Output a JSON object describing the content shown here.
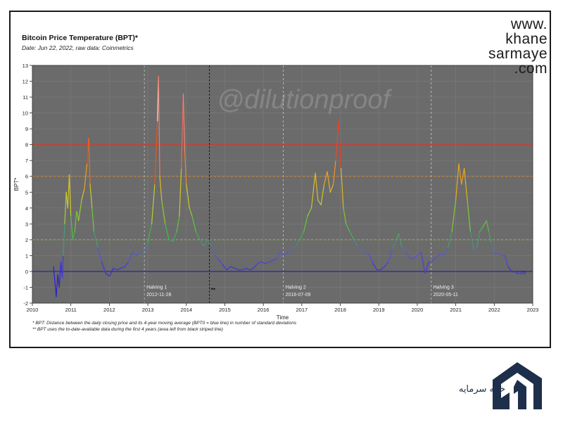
{
  "header": {
    "title": "Bitcoin Price Temperature (BPT)*",
    "subtitle": "Date: Jun 22, 2022, raw data: Coinmetrics"
  },
  "brand": {
    "lines": [
      "www.",
      "khane",
      "sarmaye",
      ".com"
    ],
    "logo_text_fa": "خانه سرمایه"
  },
  "footnotes": {
    "note1": "* BPT: Distance between the daily closing price and its 4-year moving average (BPT0 = blue line) in number of standard deviations",
    "note2": "** BPT uses the to-date-available data during the first 4 years (area left from black striped line)"
  },
  "chart_data": {
    "type": "line",
    "title": "Bitcoin Price Temperature (BPT)*",
    "subtitle": "Date: Jun 22, 2022, raw data: Coinmetrics",
    "xlabel": "Time",
    "ylabel": "BPT*",
    "watermark": "@dilutionproof",
    "xlim": [
      2010,
      2023
    ],
    "ylim": [
      -2,
      13
    ],
    "x_ticks": [
      2010,
      2011,
      2012,
      2013,
      2014,
      2015,
      2016,
      2017,
      2018,
      2019,
      2020,
      2021,
      2022,
      2023
    ],
    "y_ticks": [
      -2,
      -1,
      0,
      1,
      2,
      3,
      4,
      5,
      6,
      7,
      8,
      9,
      10,
      11,
      12,
      13
    ],
    "grid": true,
    "background": "#6b6b6b",
    "reference_lines": [
      {
        "y": 0,
        "color": "#1f1fb4",
        "style": "solid"
      },
      {
        "y": 2,
        "color": "#8fbf3a",
        "style": "dashed"
      },
      {
        "y": 6,
        "color": "#e08a1a",
        "style": "dashed"
      },
      {
        "y": 8,
        "color": "#d33a2a",
        "style": "solid"
      }
    ],
    "events": [
      {
        "label": "Halving 1",
        "date": "2012-11-28",
        "x": 2012.91
      },
      {
        "label": "Halving 2",
        "date": "2016-07-09",
        "x": 2016.52
      },
      {
        "label": "Halving 3",
        "date": "2020-05-11",
        "x": 2020.36
      }
    ],
    "cutoff": {
      "x": 2014.6,
      "label": "**"
    },
    "last_value_label": "-0.05",
    "series": [
      {
        "color_scale": [
          "#2a1fd0",
          "#5a4fe0",
          "#3cc43c",
          "#c8d42a",
          "#f0a020",
          "#e83a20",
          "#ffffff"
        ],
        "points": [
          [
            2010.55,
            0.3
          ],
          [
            2010.62,
            -1.6
          ],
          [
            2010.66,
            -0.2
          ],
          [
            2010.7,
            -1.0
          ],
          [
            2010.74,
            0.6
          ],
          [
            2010.78,
            -0.4
          ],
          [
            2010.8,
            1.0
          ],
          [
            2010.84,
            3.0
          ],
          [
            2010.88,
            5.0
          ],
          [
            2010.92,
            4.0
          ],
          [
            2010.96,
            6.1
          ],
          [
            2011.0,
            3.5
          ],
          [
            2011.05,
            2.0
          ],
          [
            2011.1,
            2.5
          ],
          [
            2011.15,
            3.8
          ],
          [
            2011.2,
            3.2
          ],
          [
            2011.28,
            4.5
          ],
          [
            2011.35,
            5.2
          ],
          [
            2011.42,
            6.8
          ],
          [
            2011.46,
            8.4
          ],
          [
            2011.5,
            5.5
          ],
          [
            2011.55,
            4.0
          ],
          [
            2011.6,
            2.5
          ],
          [
            2011.7,
            1.5
          ],
          [
            2011.8,
            0.6
          ],
          [
            2011.9,
            -0.1
          ],
          [
            2012.0,
            -0.3
          ],
          [
            2012.1,
            0.2
          ],
          [
            2012.2,
            0.1
          ],
          [
            2012.3,
            0.2
          ],
          [
            2012.4,
            0.3
          ],
          [
            2012.5,
            0.6
          ],
          [
            2012.6,
            1.2
          ],
          [
            2012.7,
            1.0
          ],
          [
            2012.8,
            1.2
          ],
          [
            2012.9,
            1.3
          ],
          [
            2013.0,
            1.8
          ],
          [
            2013.1,
            3.0
          ],
          [
            2013.18,
            5.5
          ],
          [
            2013.25,
            9.5
          ],
          [
            2013.28,
            12.3
          ],
          [
            2013.31,
            6.0
          ],
          [
            2013.36,
            4.5
          ],
          [
            2013.45,
            3.0
          ],
          [
            2013.55,
            2.0
          ],
          [
            2013.65,
            1.9
          ],
          [
            2013.75,
            2.5
          ],
          [
            2013.82,
            3.5
          ],
          [
            2013.87,
            6.5
          ],
          [
            2013.92,
            11.2
          ],
          [
            2013.96,
            7.5
          ],
          [
            2014.0,
            5.5
          ],
          [
            2014.08,
            4.0
          ],
          [
            2014.15,
            3.5
          ],
          [
            2014.25,
            2.5
          ],
          [
            2014.35,
            2.0
          ],
          [
            2014.45,
            1.6
          ],
          [
            2014.55,
            2.0
          ],
          [
            2014.65,
            1.6
          ],
          [
            2014.75,
            1.0
          ],
          [
            2014.85,
            0.7
          ],
          [
            2014.95,
            0.4
          ],
          [
            2015.05,
            0.1
          ],
          [
            2015.15,
            0.3
          ],
          [
            2015.25,
            0.2
          ],
          [
            2015.35,
            0.1
          ],
          [
            2015.45,
            0.1
          ],
          [
            2015.55,
            0.2
          ],
          [
            2015.65,
            0.1
          ],
          [
            2015.75,
            0.2
          ],
          [
            2015.85,
            0.5
          ],
          [
            2015.95,
            0.6
          ],
          [
            2016.05,
            0.5
          ],
          [
            2016.15,
            0.6
          ],
          [
            2016.25,
            0.7
          ],
          [
            2016.35,
            0.8
          ],
          [
            2016.45,
            1.3
          ],
          [
            2016.55,
            1.0
          ],
          [
            2016.65,
            1.2
          ],
          [
            2016.75,
            1.4
          ],
          [
            2016.85,
            1.6
          ],
          [
            2016.95,
            2.0
          ],
          [
            2017.05,
            2.5
          ],
          [
            2017.15,
            3.5
          ],
          [
            2017.25,
            4.0
          ],
          [
            2017.35,
            6.2
          ],
          [
            2017.42,
            4.5
          ],
          [
            2017.5,
            4.2
          ],
          [
            2017.58,
            5.5
          ],
          [
            2017.66,
            6.3
          ],
          [
            2017.74,
            5.0
          ],
          [
            2017.82,
            5.5
          ],
          [
            2017.88,
            7.0
          ],
          [
            2017.96,
            9.5
          ],
          [
            2018.02,
            6.5
          ],
          [
            2018.08,
            4.0
          ],
          [
            2018.15,
            3.0
          ],
          [
            2018.25,
            2.5
          ],
          [
            2018.35,
            2.0
          ],
          [
            2018.45,
            1.6
          ],
          [
            2018.55,
            1.3
          ],
          [
            2018.65,
            1.2
          ],
          [
            2018.75,
            1.1
          ],
          [
            2018.85,
            0.5
          ],
          [
            2018.95,
            0.1
          ],
          [
            2019.05,
            0.1
          ],
          [
            2019.15,
            0.3
          ],
          [
            2019.25,
            0.6
          ],
          [
            2019.35,
            1.4
          ],
          [
            2019.45,
            2.0
          ],
          [
            2019.52,
            2.4
          ],
          [
            2019.6,
            1.5
          ],
          [
            2019.7,
            1.2
          ],
          [
            2019.8,
            0.9
          ],
          [
            2019.9,
            0.8
          ],
          [
            2020.0,
            1.0
          ],
          [
            2020.1,
            1.2
          ],
          [
            2020.2,
            -0.1
          ],
          [
            2020.3,
            0.6
          ],
          [
            2020.4,
            0.7
          ],
          [
            2020.5,
            0.9
          ],
          [
            2020.6,
            1.1
          ],
          [
            2020.7,
            1.0
          ],
          [
            2020.8,
            1.5
          ],
          [
            2020.9,
            2.5
          ],
          [
            2021.0,
            4.5
          ],
          [
            2021.08,
            6.8
          ],
          [
            2021.15,
            5.5
          ],
          [
            2021.22,
            6.5
          ],
          [
            2021.3,
            4.5
          ],
          [
            2021.38,
            2.5
          ],
          [
            2021.48,
            1.3
          ],
          [
            2021.55,
            1.5
          ],
          [
            2021.62,
            2.5
          ],
          [
            2021.7,
            2.8
          ],
          [
            2021.8,
            3.2
          ],
          [
            2021.86,
            2.5
          ],
          [
            2021.92,
            1.8
          ],
          [
            2022.0,
            1.2
          ],
          [
            2022.1,
            1.1
          ],
          [
            2022.2,
            1.0
          ],
          [
            2022.28,
            1.0
          ],
          [
            2022.36,
            0.3
          ],
          [
            2022.42,
            0.1
          ],
          [
            2022.47,
            -0.05
          ]
        ]
      }
    ]
  }
}
